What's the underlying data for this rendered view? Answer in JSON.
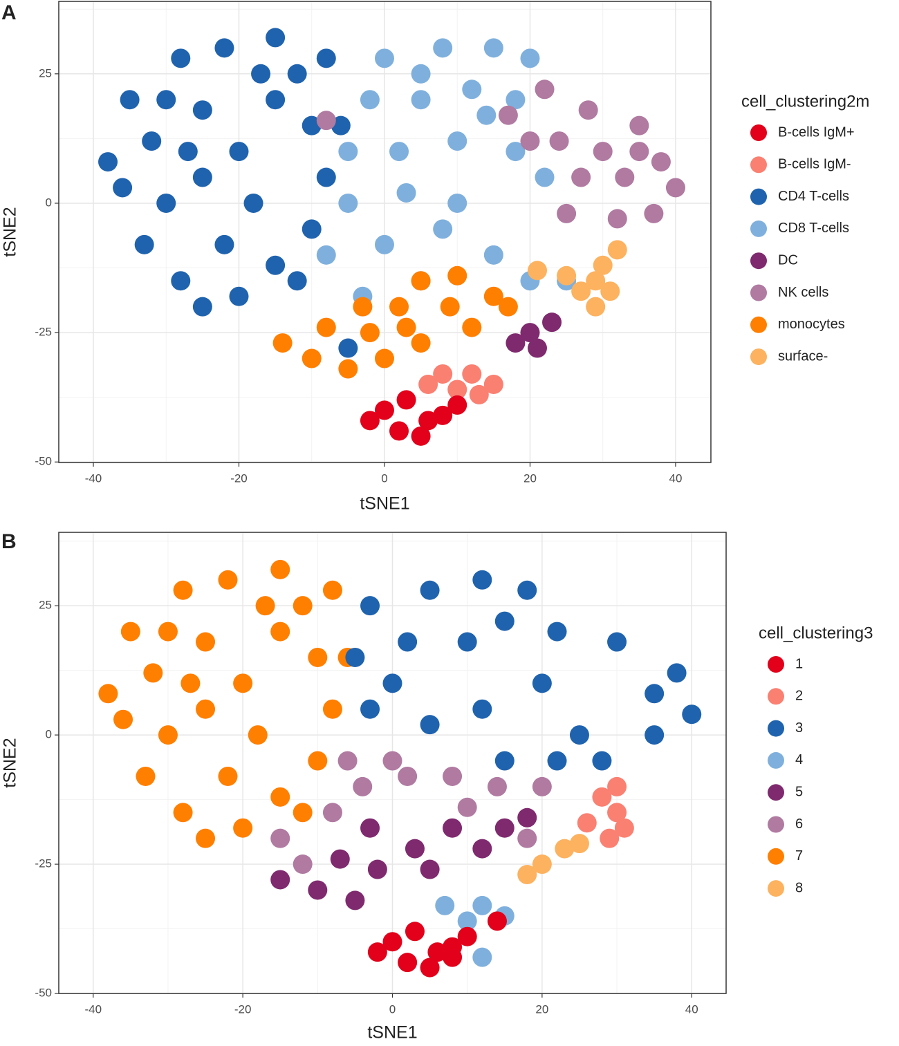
{
  "chart_data": [
    {
      "type": "scatter",
      "panel": "A",
      "xlabel": "tSNE1",
      "ylabel": "tSNE2",
      "legend_title": "cell_clustering2m",
      "xlim": [
        -44.75,
        44.85
      ],
      "ylim": [
        -50.1,
        39
      ],
      "xticks": [
        -40,
        -20,
        0,
        20,
        40
      ],
      "yticks": [
        -50,
        -25,
        0,
        25
      ],
      "x_minor_grid": [
        -30,
        -10,
        10,
        30
      ],
      "y_minor_grid": [
        -37.5,
        -12.5,
        12.5,
        37.5
      ],
      "grid": true,
      "legend": "right",
      "series": [
        {
          "name": "CD4 T-cells",
          "color": "#1f63ae",
          "x": [
            -35,
            -38,
            -32,
            -30,
            -33,
            -28,
            -25,
            -20,
            -15,
            -10,
            -8,
            -10,
            -12,
            -15,
            -22,
            -28,
            -25,
            -20,
            -18,
            -25,
            -22,
            -15,
            -5,
            -30,
            -12,
            -6,
            -36,
            -17,
            -27,
            -8
          ],
          "values": [
            20,
            8,
            12,
            0,
            -8,
            -15,
            -20,
            -18,
            -12,
            -5,
            5,
            15,
            25,
            32,
            30,
            28,
            18,
            10,
            0,
            5,
            -8,
            20,
            -28,
            20,
            -15,
            15,
            3,
            25,
            10,
            28
          ]
        },
        {
          "name": "CD8 T-cells",
          "color": "#7fb0dd",
          "x": [
            0,
            8,
            15,
            20,
            5,
            12,
            18,
            -5,
            2,
            10,
            18,
            -5,
            3,
            10,
            -8,
            0,
            8,
            15,
            20,
            25,
            -3,
            22,
            5,
            5,
            -2,
            14
          ],
          "values": [
            28,
            30,
            30,
            28,
            20,
            22,
            20,
            10,
            10,
            12,
            10,
            0,
            2,
            0,
            -10,
            -8,
            -5,
            -10,
            -15,
            -15,
            -18,
            5,
            -15,
            25,
            20,
            17
          ]
        },
        {
          "name": "NK cells",
          "color": "#b07aa1",
          "x": [
            22,
            28,
            35,
            38,
            40,
            33,
            27,
            20,
            25,
            32,
            37,
            30,
            -8,
            17,
            24,
            35
          ],
          "values": [
            22,
            18,
            15,
            8,
            3,
            5,
            5,
            12,
            -2,
            -3,
            -2,
            10,
            16,
            17,
            12,
            10
          ]
        },
        {
          "name": "monocytes",
          "color": "#ff7f00",
          "x": [
            -14,
            -10,
            -5,
            -2,
            2,
            5,
            10,
            15,
            12,
            5,
            0,
            -8,
            17,
            9,
            -3,
            3
          ],
          "values": [
            -27,
            -30,
            -32,
            -25,
            -20,
            -15,
            -14,
            -18,
            -24,
            -27,
            -30,
            -24,
            -20,
            -20,
            -20,
            -24
          ]
        },
        {
          "name": "surface-",
          "color": "#fcb25f",
          "x": [
            27,
            30,
            32,
            29,
            31,
            25,
            21,
            29
          ],
          "values": [
            -17,
            -12,
            -9,
            -20,
            -17,
            -14,
            -13,
            -15
          ]
        },
        {
          "name": "DC",
          "color": "#7f2a6e",
          "x": [
            20,
            23,
            18,
            21
          ],
          "values": [
            -25,
            -23,
            -27,
            -28
          ]
        },
        {
          "name": "B-cells IgM-",
          "color": "#fa8072",
          "x": [
            8,
            12,
            15,
            6,
            10,
            13
          ],
          "values": [
            -33,
            -33,
            -35,
            -35,
            -36,
            -37
          ]
        },
        {
          "name": "B-cells IgM+",
          "color": "#e2001a",
          "x": [
            0,
            3,
            6,
            2,
            8,
            5,
            -2,
            10
          ],
          "values": [
            -40,
            -38,
            -42,
            -44,
            -41,
            -45,
            -42,
            -39
          ]
        }
      ],
      "legend_order": [
        7,
        6,
        0,
        1,
        5,
        2,
        3,
        4
      ]
    },
    {
      "type": "scatter",
      "panel": "B",
      "xlabel": "tSNE1",
      "ylabel": "tSNE2",
      "legend_title": "cell_clustering3",
      "xlim": [
        -44.6,
        44.6
      ],
      "ylim": [
        -50,
        39.2
      ],
      "xticks": [
        -40,
        -20,
        0,
        20,
        40
      ],
      "yticks": [
        -50,
        -25,
        0,
        25
      ],
      "x_minor_grid": [
        -30,
        -10,
        10,
        30
      ],
      "y_minor_grid": [
        -37.5,
        -12.5,
        12.5,
        37.5
      ],
      "grid": true,
      "legend": "right",
      "series": [
        {
          "name": "7",
          "color": "#ff7f00",
          "x": [
            -35,
            -38,
            -32,
            -30,
            -33,
            -28,
            -25,
            -20,
            -15,
            -10,
            -8,
            -10,
            -12,
            -15,
            -22,
            -28,
            -25,
            -20,
            -18,
            -25,
            -22,
            -15,
            -30,
            -12,
            -6,
            -36,
            -17,
            -27,
            -8
          ],
          "values": [
            20,
            8,
            12,
            0,
            -8,
            -15,
            -20,
            -18,
            -12,
            -5,
            5,
            15,
            25,
            32,
            30,
            28,
            18,
            10,
            0,
            5,
            -8,
            20,
            20,
            -15,
            15,
            3,
            25,
            10,
            28
          ]
        },
        {
          "name": "3",
          "color": "#1f63ae",
          "x": [
            5,
            12,
            18,
            22,
            30,
            38,
            40,
            35,
            25,
            20,
            10,
            2,
            -5,
            -3,
            5,
            12,
            15,
            22,
            28,
            0,
            35,
            -3,
            15
          ],
          "values": [
            28,
            30,
            28,
            20,
            18,
            12,
            4,
            0,
            0,
            10,
            18,
            18,
            15,
            5,
            2,
            5,
            -5,
            -5,
            -5,
            10,
            8,
            25,
            22
          ]
        },
        {
          "name": "6",
          "color": "#b07aa1",
          "x": [
            -15,
            -12,
            -8,
            -4,
            2,
            8,
            14,
            18,
            0,
            -6,
            10,
            20
          ],
          "values": [
            -20,
            -25,
            -15,
            -10,
            -8,
            -8,
            -10,
            -20,
            -5,
            -5,
            -14,
            -10
          ]
        },
        {
          "name": "5",
          "color": "#7f2a6e",
          "x": [
            -15,
            -10,
            -5,
            -2,
            3,
            8,
            12,
            15,
            5,
            -7,
            18,
            -3
          ],
          "values": [
            -28,
            -30,
            -32,
            -26,
            -22,
            -18,
            -22,
            -18,
            -26,
            -24,
            -16,
            -18
          ]
        },
        {
          "name": "2",
          "color": "#fa8072",
          "x": [
            28,
            30,
            29,
            31,
            26,
            30
          ],
          "values": [
            -12,
            -15,
            -20,
            -18,
            -17,
            -10
          ]
        },
        {
          "name": "8",
          "color": "#fcb25f",
          "x": [
            20,
            23,
            18,
            25
          ],
          "values": [
            -25,
            -22,
            -27,
            -21
          ]
        },
        {
          "name": "4",
          "color": "#7fb0dd",
          "x": [
            7,
            12,
            15,
            10,
            12
          ],
          "values": [
            -33,
            -33,
            -35,
            -36,
            -43
          ]
        },
        {
          "name": "1",
          "color": "#e2001a",
          "x": [
            0,
            3,
            6,
            2,
            8,
            5,
            -2,
            10,
            8,
            14
          ],
          "values": [
            -40,
            -38,
            -42,
            -44,
            -41,
            -45,
            -42,
            -39,
            -43,
            -36
          ]
        }
      ],
      "legend_order": [
        7,
        4,
        1,
        6,
        3,
        2,
        0,
        5
      ]
    }
  ]
}
